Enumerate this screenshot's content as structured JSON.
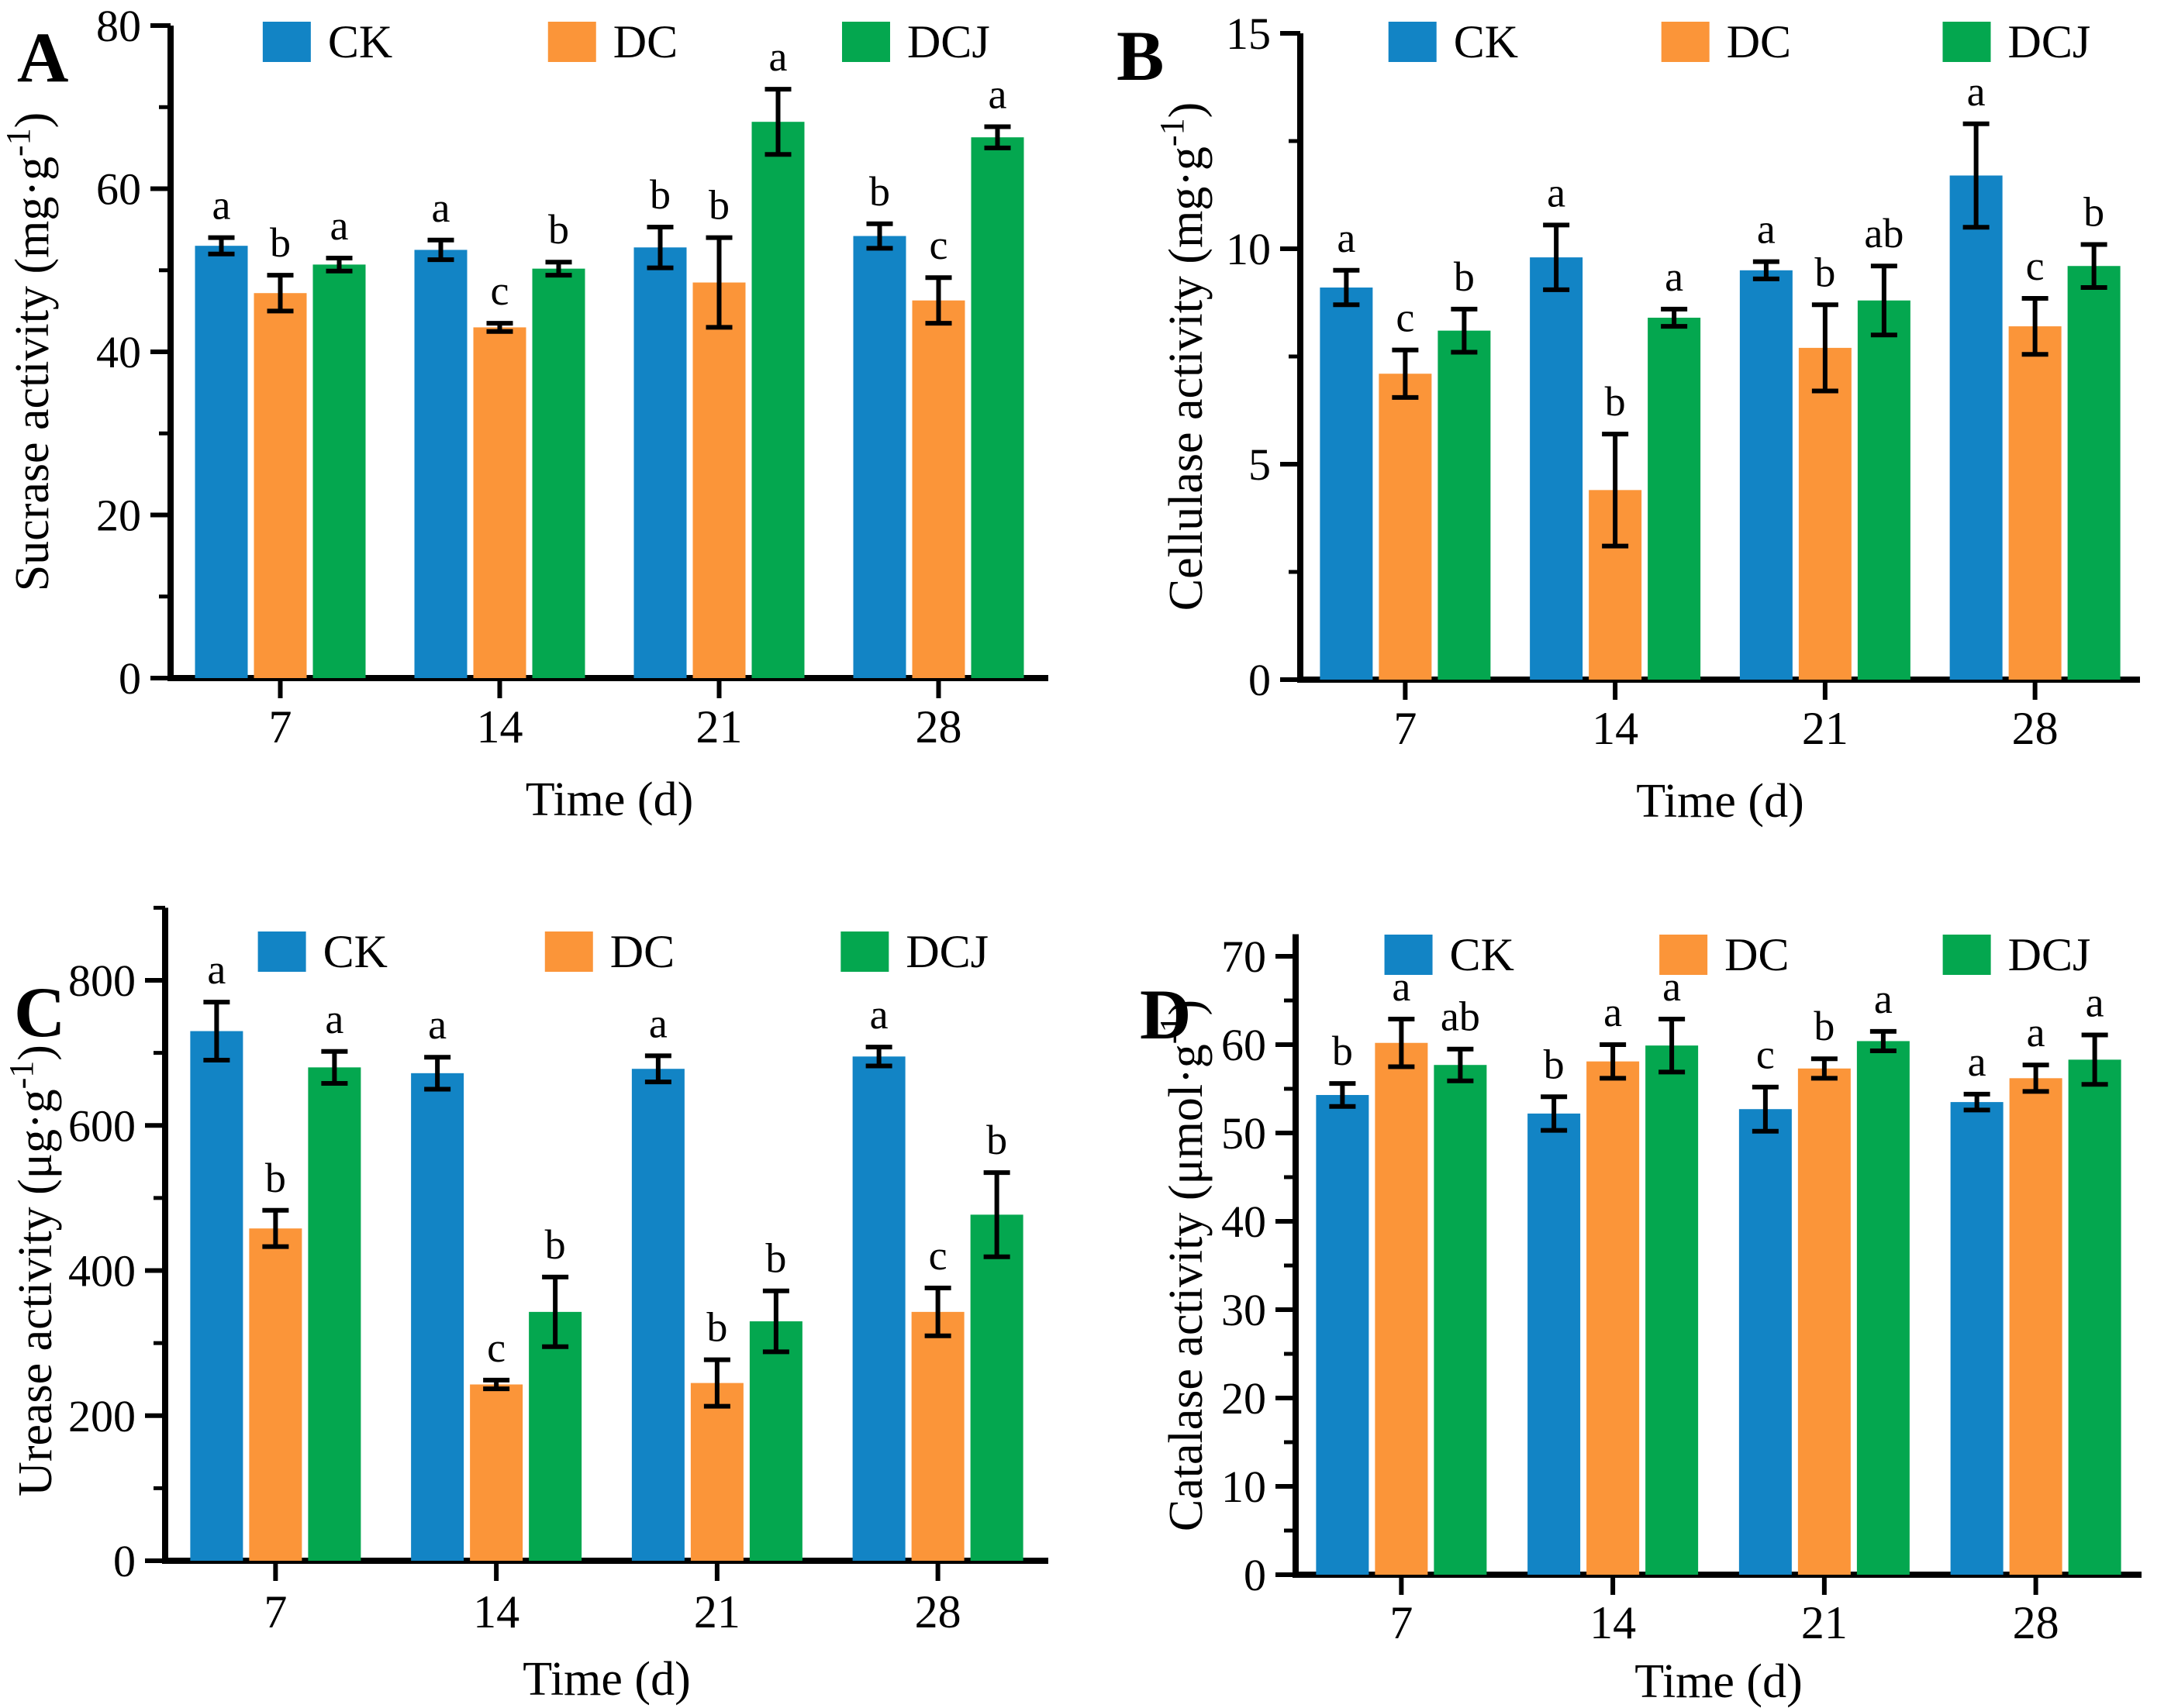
{
  "figure": {
    "background": "#ffffff",
    "text_color": "#000000",
    "panels": [
      "A",
      "B",
      "C",
      "D"
    ]
  },
  "chart_data": [
    {
      "type": "bar",
      "panel_label": "A",
      "ylabel_pre": "Sucrase activity (mg·g",
      "ylabel_sup": "-1",
      "ylabel_post": ")",
      "xlabel": "Time (d)",
      "ylim": [
        0,
        80
      ],
      "ytick_step": 20,
      "yminor_step": 10,
      "axis_top": 80,
      "grid": false,
      "legend_position": "top-inside",
      "categories": [
        "7",
        "14",
        "21",
        "28"
      ],
      "series": [
        {
          "name": "CK",
          "color": "#1284C5",
          "values": [
            53.0,
            52.5,
            52.8,
            54.2
          ],
          "errors": [
            1.0,
            1.2,
            2.5,
            1.5
          ],
          "letters": [
            "a",
            "a",
            "b",
            "b"
          ]
        },
        {
          "name": "DC",
          "color": "#FB9539",
          "values": [
            47.2,
            43.0,
            48.5,
            46.3
          ],
          "errors": [
            2.2,
            0.5,
            5.5,
            2.8
          ],
          "letters": [
            "b",
            "c",
            "b",
            "c"
          ]
        },
        {
          "name": "DCJ",
          "color": "#04A74F",
          "values": [
            50.7,
            50.2,
            68.2,
            66.3
          ],
          "errors": [
            0.8,
            0.8,
            4.0,
            1.3
          ],
          "letters": [
            "a",
            "b",
            "a",
            "a"
          ]
        }
      ]
    },
    {
      "type": "bar",
      "panel_label": "B",
      "ylabel_pre": "Cellulase activity (mg·g",
      "ylabel_sup": "-1",
      "ylabel_post": ")",
      "xlabel": "Time (d)",
      "ylim": [
        0,
        15
      ],
      "ytick_step": 5,
      "yminor_step": 2.5,
      "axis_top": 15,
      "grid": false,
      "legend_position": "top-inside",
      "categories": [
        "7",
        "14",
        "21",
        "28"
      ],
      "series": [
        {
          "name": "CK",
          "color": "#1284C5",
          "values": [
            9.1,
            9.8,
            9.5,
            11.7
          ],
          "errors": [
            0.4,
            0.75,
            0.2,
            1.2
          ],
          "letters": [
            "a",
            "a",
            "a",
            "a"
          ]
        },
        {
          "name": "DC",
          "color": "#FB9539",
          "values": [
            7.1,
            4.4,
            7.7,
            8.2
          ],
          "errors": [
            0.55,
            1.3,
            1.0,
            0.65
          ],
          "letters": [
            "c",
            "b",
            "b",
            "c"
          ]
        },
        {
          "name": "DCJ",
          "color": "#04A74F",
          "values": [
            8.1,
            8.4,
            8.8,
            9.6
          ],
          "errors": [
            0.5,
            0.2,
            0.8,
            0.5
          ],
          "letters": [
            "b",
            "a",
            "ab",
            "b"
          ]
        }
      ]
    },
    {
      "type": "bar",
      "panel_label": "C",
      "ylabel_pre": "Urease activity (μg·g",
      "ylabel_sup": "-1",
      "ylabel_post": ")",
      "xlabel": "Time (d)",
      "ylim": [
        0,
        800
      ],
      "ytick_step": 200,
      "yminor_step": 100,
      "axis_top": 900,
      "grid": false,
      "legend_position": "top-inside",
      "categories": [
        "7",
        "14",
        "21",
        "28"
      ],
      "series": [
        {
          "name": "CK",
          "color": "#1284C5",
          "values": [
            730,
            672,
            678,
            695
          ],
          "errors": [
            40,
            22,
            18,
            13
          ],
          "letters": [
            "a",
            "a",
            "a",
            "a"
          ]
        },
        {
          "name": "DC",
          "color": "#FB9539",
          "values": [
            458,
            243,
            245,
            343
          ],
          "errors": [
            25,
            6,
            32,
            33
          ],
          "letters": [
            "b",
            "c",
            "b",
            "c"
          ]
        },
        {
          "name": "DCJ",
          "color": "#04A74F",
          "values": [
            680,
            343,
            330,
            477
          ],
          "errors": [
            22,
            48,
            42,
            58
          ],
          "letters": [
            "a",
            "b",
            "b",
            "b"
          ]
        }
      ]
    },
    {
      "type": "bar",
      "panel_label": "D",
      "ylabel_pre": "Catalase activity (μmol·g",
      "ylabel_sup": "-1",
      "ylabel_post": ")",
      "xlabel": "Time (d)",
      "ylim": [
        0,
        70
      ],
      "ytick_step": 10,
      "yminor_step": 5,
      "axis_top": 72.5,
      "grid": false,
      "legend_position": "top-inside",
      "categories": [
        "7",
        "14",
        "21",
        "28"
      ],
      "series": [
        {
          "name": "CK",
          "color": "#1284C5",
          "values": [
            54.3,
            52.2,
            52.7,
            53.5
          ],
          "errors": [
            1.3,
            1.9,
            2.5,
            0.9
          ],
          "letters": [
            "b",
            "b",
            "c",
            "a"
          ]
        },
        {
          "name": "DC",
          "color": "#FB9539",
          "values": [
            60.2,
            58.1,
            57.3,
            56.2
          ],
          "errors": [
            2.7,
            1.9,
            1.1,
            1.5
          ],
          "letters": [
            "a",
            "a",
            "b",
            "a"
          ]
        },
        {
          "name": "DCJ",
          "color": "#04A74F",
          "values": [
            57.7,
            59.9,
            60.4,
            58.3
          ],
          "errors": [
            1.8,
            3.0,
            1.1,
            2.8
          ],
          "letters": [
            "ab",
            "a",
            "a",
            "a"
          ]
        }
      ]
    }
  ]
}
